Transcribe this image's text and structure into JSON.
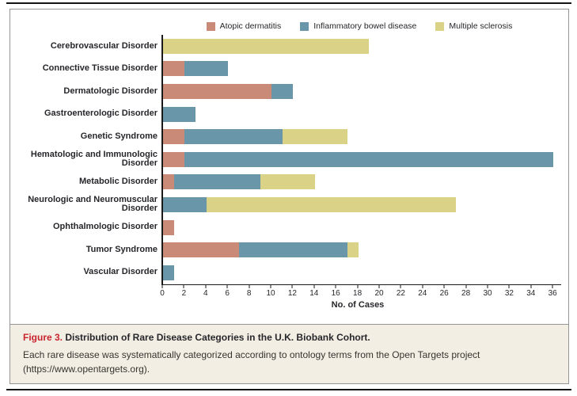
{
  "figure": {
    "caption_label": "Figure 3.",
    "caption_title": "Distribution of Rare Disease Categories in the U.K. Biobank Cohort.",
    "caption_body_line1": "Each rare disease was systematically categorized according to ontology terms from the Open Targets project",
    "caption_body_line2": "(https://www.opentargets.org)."
  },
  "colors": {
    "atopic_dermatitis": "#c98a78",
    "inflammatory_bowel_disease": "#6997a9",
    "multiple_sclerosis": "#d9d287",
    "axis": "#1a1a1a",
    "label_text": "#26262b",
    "caption_background": "#f3eee3",
    "figure_label_red": "#c9232e"
  },
  "chart_data": {
    "type": "bar",
    "orientation": "horizontal",
    "stacked": true,
    "title": "",
    "xlabel": "No. of Cases",
    "ylabel": "",
    "xlim": [
      0,
      36
    ],
    "xticks": [
      0,
      2,
      4,
      6,
      8,
      10,
      12,
      14,
      16,
      18,
      20,
      22,
      24,
      26,
      28,
      30,
      32,
      34,
      36
    ],
    "grid": false,
    "legend_position": "top",
    "categories": [
      "Cerebrovascular Disorder",
      "Connective Tissue Disorder",
      "Dermatologic Disorder",
      "Gastroenterologic Disorder",
      "Genetic Syndrome",
      "Hematologic and Immunologic Disorder",
      "Metabolic Disorder",
      "Neurologic and Neuromuscular Disorder",
      "Ophthalmologic Disorder",
      "Tumor Syndrome",
      "Vascular Disorder"
    ],
    "series": [
      {
        "name": "Atopic dermatitis",
        "color": "#c98a78",
        "values": [
          0,
          2,
          10,
          0,
          2,
          2,
          1,
          0,
          1,
          7,
          0
        ]
      },
      {
        "name": "Inflammatory bowel disease",
        "color": "#6997a9",
        "values": [
          0,
          4,
          2,
          3,
          9,
          34,
          8,
          4,
          0,
          10,
          1
        ]
      },
      {
        "name": "Multiple sclerosis",
        "color": "#d9d287",
        "values": [
          19,
          0,
          0,
          0,
          6,
          0,
          5,
          23,
          0,
          1,
          0
        ]
      }
    ],
    "category_totals": [
      19,
      6,
      12,
      3,
      17,
      36,
      14,
      27,
      1,
      18,
      1
    ]
  }
}
